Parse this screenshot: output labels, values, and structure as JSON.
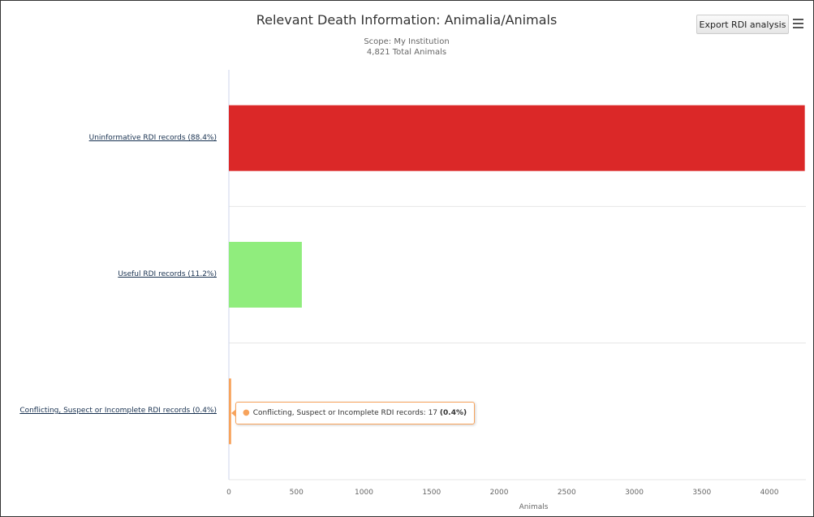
{
  "header": {
    "title": "Relevant Death Information: Animalia/Animals",
    "scope": "Scope: My Institution",
    "total": "4,821 Total Animals",
    "export_label": "Export RDI analysis",
    "menu_icon": "hamburger-menu-icon"
  },
  "chart_data": {
    "type": "bar",
    "orientation": "horizontal",
    "title": "Relevant Death Information: Animalia/Animals",
    "subtitle": [
      "Scope: My Institution",
      "4,821 Total Animals"
    ],
    "categories": [
      "Uninformative RDI records (88.4%)",
      "Useful RDI records (11.2%)",
      "Conflicting, Suspect or Incomplete RDI records (0.4%)"
    ],
    "values": [
      4262,
      540,
      17
    ],
    "colors": [
      "#db2828",
      "#90ed7d",
      "#f7a35c"
    ],
    "xlabel": "Animals",
    "xlim": [
      0,
      4270
    ],
    "xticks": [
      0,
      500,
      1000,
      1500,
      2000,
      2500,
      3000,
      3500,
      4000
    ],
    "grid": true,
    "legend": false
  },
  "tooltip": {
    "category": "Conflicting, Suspect or Incomplete RDI records",
    "value_text": "17",
    "percent_text": "(0.4%)",
    "color": "#f7a35c"
  }
}
